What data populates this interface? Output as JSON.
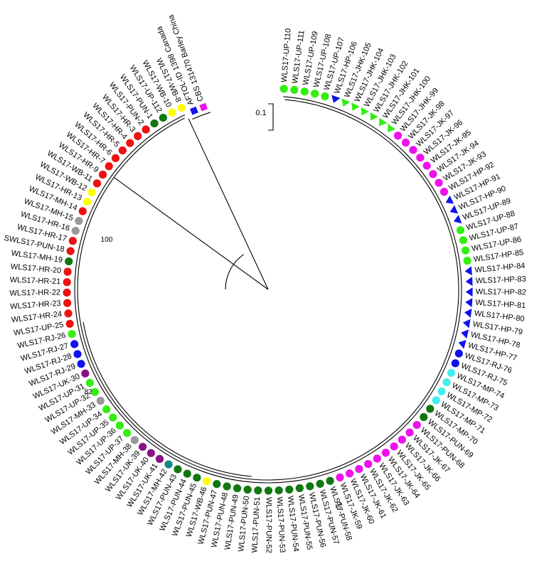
{
  "scale_bar": {
    "label": "0.1"
  },
  "bootstrap_labels": [
    "100",
    "82",
    "59"
  ],
  "colors": {
    "green": "#33ee11",
    "magenta": "#ee11ee",
    "blue": "#1111ee",
    "red": "#ee1111",
    "yellow": "#ffff00",
    "grey": "#999999",
    "darkgreen": "#117711",
    "purple": "#881188",
    "cyan": "#44eeee",
    "teal": "#118888"
  },
  "outgroup": [
    {
      "label": "CBS 131470 Barley China",
      "color": "magenta",
      "shape": "square"
    },
    {
      "label": "AFTOL-ID 1398 Canada",
      "color": "blue",
      "shape": "square"
    }
  ],
  "taxa": [
    {
      "label": "WLS17-UP-110",
      "color": "green",
      "shape": "circle"
    },
    {
      "label": "WLS17-UP-111",
      "color": "green",
      "shape": "circle"
    },
    {
      "label": "WLS17-UP-109",
      "color": "green",
      "shape": "circle"
    },
    {
      "label": "WLS17-UP-108",
      "color": "green",
      "shape": "circle"
    },
    {
      "label": "WLS17-UP-107",
      "color": "green",
      "shape": "circle"
    },
    {
      "label": "WLS17-HP-106",
      "color": "blue",
      "shape": "triangle"
    },
    {
      "label": "WLS17-JHK-105",
      "color": "green",
      "shape": "triangle"
    },
    {
      "label": "WLS17-JHK-104",
      "color": "green",
      "shape": "triangle"
    },
    {
      "label": "WLS17-JHK-103",
      "color": "green",
      "shape": "triangle"
    },
    {
      "label": "WLS17-JHK-102",
      "color": "green",
      "shape": "triangle"
    },
    {
      "label": "WLS17-JHK-101",
      "color": "green",
      "shape": "triangle"
    },
    {
      "label": "WLS17-JHK-100",
      "color": "green",
      "shape": "triangle"
    },
    {
      "label": "WLS17-JHK-99",
      "color": "magenta",
      "shape": "circle"
    },
    {
      "label": "WLS17-JK-98",
      "color": "magenta",
      "shape": "circle"
    },
    {
      "label": "WLS17-JK-97",
      "color": "magenta",
      "shape": "circle"
    },
    {
      "label": "WLS17-JK-96",
      "color": "magenta",
      "shape": "circle"
    },
    {
      "label": "WLS17-JK-95",
      "color": "magenta",
      "shape": "circle"
    },
    {
      "label": "WLS17-JK-94",
      "color": "magenta",
      "shape": "circle"
    },
    {
      "label": "WLS17-JK-93",
      "color": "magenta",
      "shape": "circle"
    },
    {
      "label": "WLS17-HP-92",
      "color": "magenta",
      "shape": "circle"
    },
    {
      "label": "WLS17-HP-91",
      "color": "blue",
      "shape": "triangle"
    },
    {
      "label": "WLS17-HP-90",
      "color": "blue",
      "shape": "triangle"
    },
    {
      "label": "WLS17-UP-89",
      "color": "blue",
      "shape": "triangle"
    },
    {
      "label": "WLS17-UP-88",
      "color": "green",
      "shape": "circle"
    },
    {
      "label": "WLS17-UP-87",
      "color": "green",
      "shape": "circle"
    },
    {
      "label": "WLS17-UP-86",
      "color": "green",
      "shape": "circle"
    },
    {
      "label": "WLS17-HP-85",
      "color": "green",
      "shape": "circle"
    },
    {
      "label": "WLS17-HP-84",
      "color": "blue",
      "shape": "triangle"
    },
    {
      "label": "WLS17-HP-83",
      "color": "blue",
      "shape": "triangle"
    },
    {
      "label": "WLS17-HP-82",
      "color": "blue",
      "shape": "triangle"
    },
    {
      "label": "WLS17-HP-81",
      "color": "blue",
      "shape": "triangle"
    },
    {
      "label": "WLS17-HP-80",
      "color": "blue",
      "shape": "triangle"
    },
    {
      "label": "WLS17-HP-79",
      "color": "blue",
      "shape": "triangle"
    },
    {
      "label": "WLS17-HP-78",
      "color": "blue",
      "shape": "triangle"
    },
    {
      "label": "WLS17-HP-77",
      "color": "blue",
      "shape": "triangle"
    },
    {
      "label": "WLS17-RJ-76",
      "color": "blue",
      "shape": "circle"
    },
    {
      "label": "WLS17-RJ-75",
      "color": "blue",
      "shape": "circle"
    },
    {
      "label": "WLS17-MP-74",
      "color": "cyan",
      "shape": "circle"
    },
    {
      "label": "WLS17-MP-73",
      "color": "cyan",
      "shape": "circle"
    },
    {
      "label": "WLS17-MP-72",
      "color": "cyan",
      "shape": "circle"
    },
    {
      "label": "WLS17-MP-71",
      "color": "cyan",
      "shape": "circle"
    },
    {
      "label": "WLS17-MP-70",
      "color": "darkgreen",
      "shape": "circle"
    },
    {
      "label": "WLS17-PUN-69",
      "color": "darkgreen",
      "shape": "circle"
    },
    {
      "label": "WLS17-PUN-68",
      "color": "magenta",
      "shape": "circle"
    },
    {
      "label": "WLS17-JK-67",
      "color": "magenta",
      "shape": "circle"
    },
    {
      "label": "WLS17-JK-66",
      "color": "magenta",
      "shape": "circle"
    },
    {
      "label": "WLS17-JK-65",
      "color": "magenta",
      "shape": "circle"
    },
    {
      "label": "WLS17-JK-64",
      "color": "magenta",
      "shape": "circle"
    },
    {
      "label": "WLS17-JK-63",
      "color": "magenta",
      "shape": "circle"
    },
    {
      "label": "WLS17-JK-62",
      "color": "magenta",
      "shape": "circle"
    },
    {
      "label": "WLS17-JK-61",
      "color": "magenta",
      "shape": "circle"
    },
    {
      "label": "WLS17-JK-60",
      "color": "magenta",
      "shape": "circle"
    },
    {
      "label": "WLS17-JK-59",
      "color": "magenta",
      "shape": "circle"
    },
    {
      "label": "WLS17-PUN-58",
      "color": "darkgreen",
      "shape": "circle"
    },
    {
      "label": "WLS17-PUN-57",
      "color": "darkgreen",
      "shape": "circle"
    },
    {
      "label": "WLS17-PUN-56",
      "color": "darkgreen",
      "shape": "circle"
    },
    {
      "label": "WLS17-PUN-55",
      "color": "darkgreen",
      "shape": "circle"
    },
    {
      "label": "WLS17-PUN-54",
      "color": "darkgreen",
      "shape": "circle"
    },
    {
      "label": "WLS17-PUN-53",
      "color": "darkgreen",
      "shape": "circle"
    },
    {
      "label": "WLS17-PUN-52",
      "color": "darkgreen",
      "shape": "circle"
    },
    {
      "label": "WLS17-PUN-51",
      "color": "darkgreen",
      "shape": "circle"
    },
    {
      "label": "WLS17-PUN-50",
      "color": "darkgreen",
      "shape": "circle"
    },
    {
      "label": "WLS17-PUN-49",
      "color": "darkgreen",
      "shape": "circle"
    },
    {
      "label": "WLS17-PUN-48",
      "color": "darkgreen",
      "shape": "circle"
    },
    {
      "label": "WLS17-PUN-47",
      "color": "darkgreen",
      "shape": "circle"
    },
    {
      "label": "WLS17-WB-46",
      "color": "yellow",
      "shape": "circle"
    },
    {
      "label": "WLS17-PUN-45",
      "color": "darkgreen",
      "shape": "circle"
    },
    {
      "label": "WLS17-PUN-44",
      "color": "darkgreen",
      "shape": "circle"
    },
    {
      "label": "WLS17-PUN-43",
      "color": "darkgreen",
      "shape": "circle"
    },
    {
      "label": "WLS17-MH-42",
      "color": "teal",
      "shape": "circle"
    },
    {
      "label": "WLS17-UK-41",
      "color": "purple",
      "shape": "circle"
    },
    {
      "label": "WLS17-UK-40",
      "color": "purple",
      "shape": "circle"
    },
    {
      "label": "WLS17-UK-39",
      "color": "purple",
      "shape": "circle"
    },
    {
      "label": "WLS17-MH-38",
      "color": "grey",
      "shape": "circle"
    },
    {
      "label": "WLS17-UP-37",
      "color": "green",
      "shape": "circle"
    },
    {
      "label": "WLS17-UP-36",
      "color": "green",
      "shape": "circle"
    },
    {
      "label": "WLS17-UP-35",
      "color": "green",
      "shape": "circle"
    },
    {
      "label": "WLS17-UP-34",
      "color": "green",
      "shape": "circle"
    },
    {
      "label": "WLS17-MH-33",
      "color": "grey",
      "shape": "circle"
    },
    {
      "label": "WLS17-UP-32",
      "color": "green",
      "shape": "circle"
    },
    {
      "label": "WLS17-UP-31",
      "color": "green",
      "shape": "circle"
    },
    {
      "label": "WLS17-UK-30",
      "color": "purple",
      "shape": "circle"
    },
    {
      "label": "WLS17-RJ-29",
      "color": "blue",
      "shape": "circle"
    },
    {
      "label": "WLS17-RJ-28",
      "color": "blue",
      "shape": "circle"
    },
    {
      "label": "WLS17-RJ-27",
      "color": "blue",
      "shape": "circle"
    },
    {
      "label": "WLS17-RJ-26",
      "color": "green",
      "shape": "circle"
    },
    {
      "label": "WLS17-UP-25",
      "color": "red",
      "shape": "circle"
    },
    {
      "label": "WLS17-HR-24",
      "color": "red",
      "shape": "circle"
    },
    {
      "label": "WLS17-HR-23",
      "color": "red",
      "shape": "circle"
    },
    {
      "label": "WLS17-HR-22",
      "color": "red",
      "shape": "circle"
    },
    {
      "label": "WLS17-HR-21",
      "color": "red",
      "shape": "circle"
    },
    {
      "label": "WLS17-HR-20",
      "color": "red",
      "shape": "circle"
    },
    {
      "label": "WLS17-MH-19",
      "color": "darkgreen",
      "shape": "circle"
    },
    {
      "label": "SWLS17-PUN-18",
      "color": "red",
      "shape": "circle"
    },
    {
      "label": "WLS17-HR-17",
      "color": "red",
      "shape": "circle"
    },
    {
      "label": "WLS17-HR-16",
      "color": "grey",
      "shape": "circle"
    },
    {
      "label": "WLS17-MH-15",
      "color": "grey",
      "shape": "circle"
    },
    {
      "label": "WLS17-MH-14",
      "color": "red",
      "shape": "circle"
    },
    {
      "label": "WLS17-HR-13",
      "color": "yellow",
      "shape": "circle"
    },
    {
      "label": "WLS17-WB-12",
      "color": "yellow",
      "shape": "circle"
    },
    {
      "label": "WLS17-WB-11",
      "color": "red",
      "shape": "circle"
    },
    {
      "label": "WLS17-HR-9",
      "color": "red",
      "shape": "circle"
    },
    {
      "label": "WLS17-HR-7",
      "color": "red",
      "shape": "circle"
    },
    {
      "label": "WLS17-HR-6",
      "color": "red",
      "shape": "circle"
    },
    {
      "label": "WLS17-HR-5",
      "color": "red",
      "shape": "circle"
    },
    {
      "label": "WLS17-HR-4",
      "color": "red",
      "shape": "circle"
    },
    {
      "label": "WLS17-HR-3",
      "color": "red",
      "shape": "circle"
    },
    {
      "label": "WLS17-PUN-2",
      "color": "red",
      "shape": "circle"
    },
    {
      "label": "WLS17-PUN-1",
      "color": "darkgreen",
      "shape": "circle"
    },
    {
      "label": "WLS17-UP-112",
      "color": "darkgreen",
      "shape": "circle"
    },
    {
      "label": "WLS17-WB-10",
      "color": "yellow",
      "shape": "circle"
    },
    {
      "label": "WLS17-WB-8",
      "color": "yellow",
      "shape": "circle"
    }
  ]
}
